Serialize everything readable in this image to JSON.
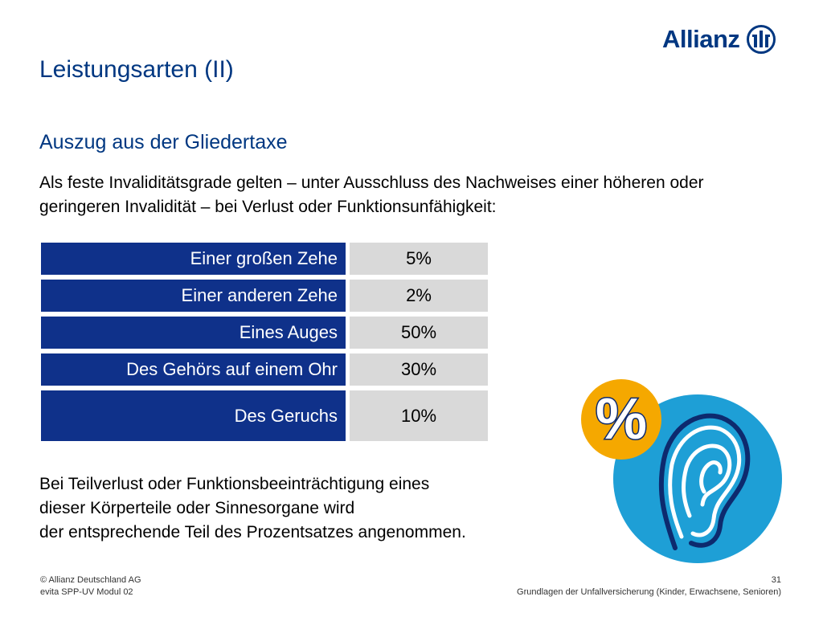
{
  "logo": {
    "text": "Allianz"
  },
  "title": "Leistungsarten (II)",
  "subtitle": "Auszug aus der Gliedertaxe",
  "intro": "Als feste Invaliditätsgrade gelten – unter Ausschluss des Nachweises einer höheren oder geringeren Invalidität – bei Verlust oder Funktionsunfähigkeit:",
  "table": {
    "rows": [
      {
        "label": "Einer großen Zehe",
        "value": "5%"
      },
      {
        "label": "Einer anderen Zehe",
        "value": "2%"
      },
      {
        "label": "Eines Auges",
        "value": "50%"
      },
      {
        "label": "Des Gehörs auf einem Ohr",
        "value": "30%"
      },
      {
        "label": "Des Geruchs",
        "value": "10%"
      }
    ]
  },
  "outro": {
    "line1": "Bei Teilverlust oder Funktionsbeeinträchtigung eines",
    "line2": "dieser Körperteile oder Sinnesorgane wird",
    "line3": "der entsprechende Teil des Prozentsatzes angenommen."
  },
  "illustration": {
    "percent_symbol": "%",
    "icon": "ear-percent-icon"
  },
  "colors": {
    "brand_blue": "#003781",
    "table_blue": "#0f318a",
    "table_grey": "#d9d9d9",
    "circle_blue": "#1e9fd6",
    "badge_orange": "#f5a800"
  },
  "footer": {
    "copyright": "© Allianz Deutschland AG",
    "module": "evita SPP-UV Modul 02",
    "page": "31",
    "course": "Grundlagen der Unfallversicherung (Kinder, Erwachsene, Senioren)"
  }
}
